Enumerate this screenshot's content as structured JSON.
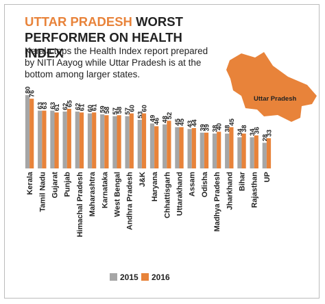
{
  "chart_data": {
    "type": "bar",
    "title_highlight": "UTTAR PRADESH",
    "title": "WORST PERFORMER ON HEALTH INDEX",
    "subtitle": "Kerala tops the Health Index report prepared by NITI Aayog while Uttar Pradesh is at the bottom among larger states.",
    "annotation": "Uttar Pradesh",
    "categories": [
      "Kerala",
      "Tamil Nadu",
      "Gujarat",
      "Punjab",
      "Himachal Pradesh",
      "Maharashtra",
      "Karnataka",
      "West Bengal",
      "Andhra Pradesh",
      "J&K",
      "Haryana",
      "Chhattisgarh",
      "Uttarakhand",
      "Assam",
      "Odisha",
      "Madhya Pradesh",
      "Jharkhand",
      "Bihar",
      "Rajasthan",
      "UP"
    ],
    "series": [
      {
        "name": "2015",
        "color": "#a6a6a6",
        "values": [
          80,
          63,
          63,
          62,
          62,
          60,
          59,
          57,
          57,
          53,
          49,
          48,
          45,
          43,
          39,
          38,
          38,
          34,
          34,
          28
        ]
      },
      {
        "name": "2016",
        "color": "#e8833a",
        "values": [
          76,
          63,
          61,
          65,
          61,
          61,
          58,
          58,
          60,
          60,
          46,
          52,
          45,
          44,
          39,
          40,
          45,
          38,
          36,
          33
        ]
      }
    ],
    "legend": "bottom"
  }
}
